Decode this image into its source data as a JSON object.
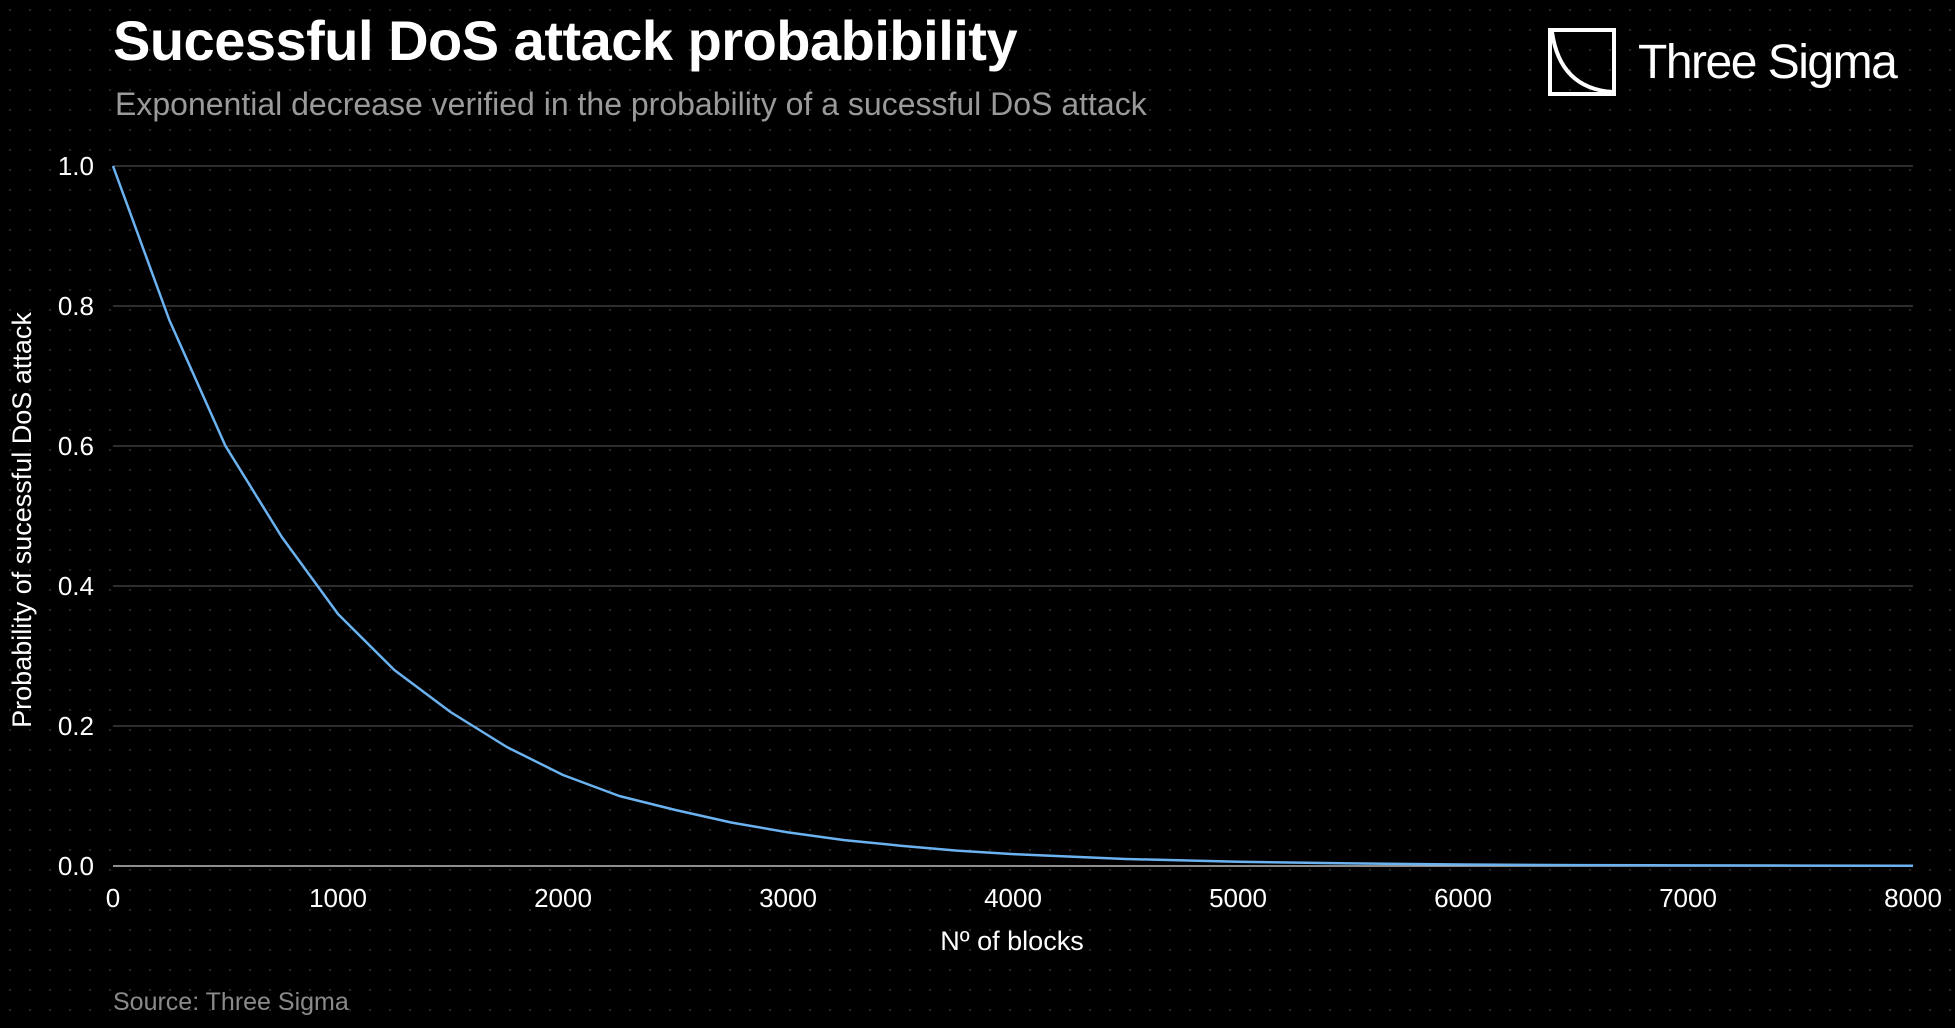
{
  "brand": {
    "name": "Three Sigma",
    "logo_icon": "three-sigma-logo-icon"
  },
  "source": "Source: Three Sigma",
  "colors": {
    "background": "#000000",
    "line": "#6bb2f0",
    "grid": "#4a4a4a",
    "subtitle": "#9a9a9a"
  },
  "chart_data": {
    "type": "line",
    "title": "Sucessful DoS attack probabibility",
    "subtitle": "Exponential decrease verified in the probability of a sucessful DoS attack",
    "xlabel": "Nº of blocks",
    "ylabel": "Probability of sucessful DoS attack",
    "xlim": [
      0,
      8000
    ],
    "ylim": [
      0,
      1.0
    ],
    "x_ticks": [
      0,
      1000,
      2000,
      3000,
      4000,
      5000,
      6000,
      7000,
      8000
    ],
    "x_tick_labels": [
      "0",
      "1000",
      "2000",
      "3000",
      "4000",
      "5000",
      "6000",
      "7000",
      "8000"
    ],
    "y_ticks": [
      0.0,
      0.2,
      0.4,
      0.6,
      0.8,
      1.0
    ],
    "y_tick_labels": [
      "0.0",
      "0.2",
      "0.4",
      "0.6",
      "0.8",
      "1.0"
    ],
    "grid": "horizontal",
    "legend": "none",
    "series": [
      {
        "name": "Probability of sucessful DoS attack",
        "x": [
          0,
          250,
          500,
          750,
          1000,
          1250,
          1500,
          1750,
          2000,
          2250,
          2500,
          2750,
          3000,
          3250,
          3500,
          3750,
          4000,
          4500,
          5000,
          5500,
          6000,
          6500,
          7000,
          7500,
          8000
        ],
        "y": [
          1.0,
          0.78,
          0.6,
          0.47,
          0.36,
          0.28,
          0.22,
          0.17,
          0.13,
          0.1,
          0.08,
          0.062,
          0.048,
          0.037,
          0.029,
          0.022,
          0.017,
          0.01,
          0.006,
          0.0037,
          0.0022,
          0.0013,
          0.0008,
          0.0005,
          0.0003
        ]
      }
    ]
  }
}
